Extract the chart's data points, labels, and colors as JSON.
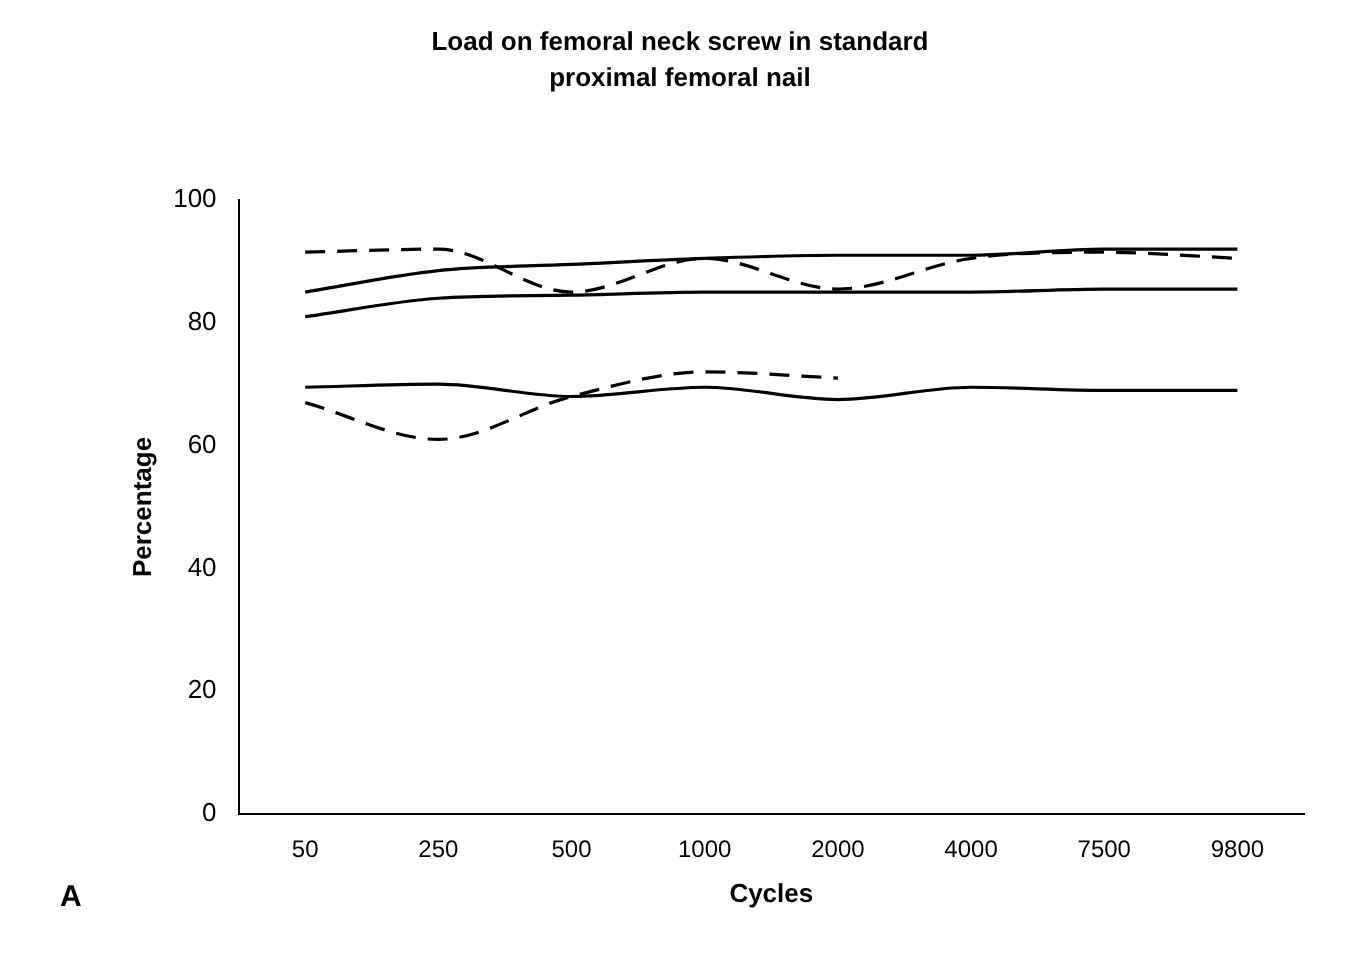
{
  "chart_data": {
    "type": "line",
    "title": "Load on femoral neck screw in standard proximal femoral nail",
    "xlabel": "Cycles",
    "ylabel": "Percentage",
    "categories": [
      "50",
      "250",
      "500",
      "1000",
      "2000",
      "4000",
      "7500",
      "9800"
    ],
    "series": [
      {
        "color": "#000000",
        "line_style": "dashed",
        "values": [
          91.5,
          92,
          85,
          90.5,
          85.5,
          90.5,
          91.5,
          90.5
        ]
      },
      {
        "color": "#000000",
        "line_style": "solid",
        "values": [
          85,
          88.5,
          89.5,
          90.5,
          91,
          91,
          92,
          92
        ]
      },
      {
        "color": "#000000",
        "line_style": "solid",
        "values": [
          81,
          84,
          84.5,
          85,
          85,
          85,
          85.5,
          85.5
        ]
      },
      {
        "color": "#000000",
        "line_style": "solid",
        "values": [
          69.5,
          70,
          68,
          69.5,
          67.5,
          69.5,
          69,
          69
        ]
      },
      {
        "color": "#000000",
        "line_style": "dashed",
        "values": [
          67,
          61,
          68,
          72,
          71,
          null,
          null,
          null
        ]
      }
    ],
    "ylim": [
      0,
      100
    ],
    "yticks": [
      0,
      20,
      40,
      60,
      80,
      100
    ],
    "grid": false,
    "legend": false,
    "marker": "none",
    "annotations": [
      "A"
    ]
  }
}
